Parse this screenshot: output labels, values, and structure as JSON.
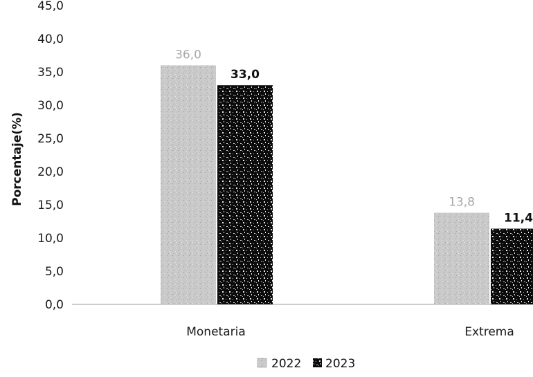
{
  "chart_data": {
    "type": "bar",
    "categories": [
      "Monetaria",
      "Extrema"
    ],
    "series": [
      {
        "name": "2022",
        "values": [
          36.0,
          13.8
        ],
        "labels": [
          "36,0",
          "13,8"
        ],
        "color": "#c8c8c8",
        "pattern": "light-speckle"
      },
      {
        "name": "2023",
        "values": [
          33.0,
          11.4
        ],
        "labels": [
          "33,0",
          "11,4"
        ],
        "color": "#0a0a0a",
        "pattern": "dark-speckle"
      }
    ],
    "ylabel": "Porcentaje(%)",
    "xlabel": "",
    "ylim": [
      0,
      45
    ],
    "yticks": [
      "0,0",
      "5,0",
      "10,0",
      "15,0",
      "20,0",
      "25,0",
      "30,0",
      "35,0",
      "40,0",
      "45,0"
    ],
    "ytick_values": [
      0,
      5,
      10,
      15,
      20,
      25,
      30,
      35,
      40,
      45
    ],
    "grid": false,
    "legend_position": "bottom-center"
  }
}
